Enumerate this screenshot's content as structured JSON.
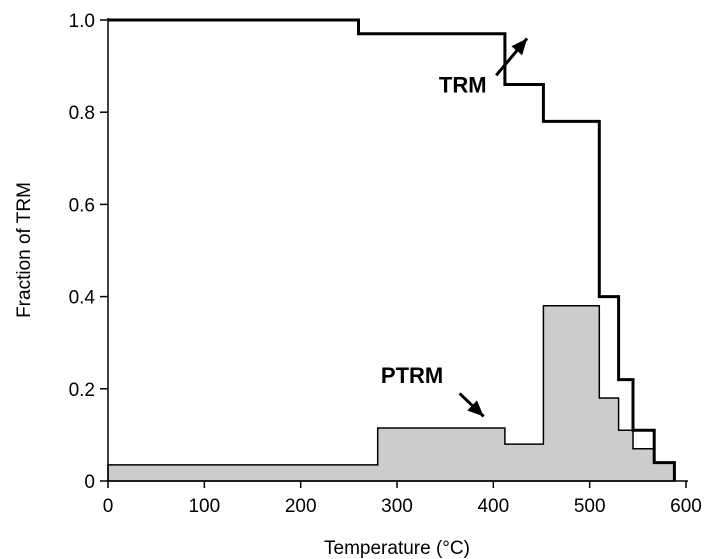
{
  "chart_data": {
    "type": "area",
    "title": "",
    "xlabel": "Temperature (°C)",
    "ylabel": "Fraction  of TRM",
    "xlim": [
      0,
      600
    ],
    "ylim": [
      0,
      1.0
    ],
    "xticks": [
      0,
      100,
      200,
      300,
      400,
      500,
      600
    ],
    "xtick_labels": [
      "0",
      "100",
      "200",
      "300",
      "400",
      "500",
      "600"
    ],
    "yticks": [
      0,
      0.2,
      0.4,
      0.6,
      0.8,
      1.0
    ],
    "ytick_labels": [
      "0",
      "0.2",
      "0.4",
      "0.6",
      "0.8",
      "1.0"
    ],
    "grid": false,
    "series": [
      {
        "name": "TRM",
        "style": "step-line",
        "color": "#000000",
        "points": [
          [
            0,
            1.0
          ],
          [
            260,
            1.0
          ],
          [
            260,
            0.97
          ],
          [
            412,
            0.97
          ],
          [
            412,
            0.86
          ],
          [
            452,
            0.86
          ],
          [
            452,
            0.78
          ],
          [
            510,
            0.78
          ],
          [
            510,
            0.4
          ],
          [
            530,
            0.4
          ],
          [
            530,
            0.22
          ],
          [
            545,
            0.22
          ],
          [
            545,
            0.11
          ],
          [
            567,
            0.11
          ],
          [
            567,
            0.04
          ],
          [
            588,
            0.04
          ],
          [
            588,
            0
          ]
        ]
      },
      {
        "name": "PTRM",
        "style": "step-area",
        "fill": "#cccccc",
        "color": "#000000",
        "points": [
          [
            0,
            0
          ],
          [
            0,
            0.035
          ],
          [
            280,
            0.035
          ],
          [
            280,
            0.115
          ],
          [
            412,
            0.115
          ],
          [
            412,
            0.08
          ],
          [
            452,
            0.08
          ],
          [
            452,
            0.38
          ],
          [
            510,
            0.38
          ],
          [
            510,
            0.18
          ],
          [
            530,
            0.18
          ],
          [
            530,
            0.11
          ],
          [
            545,
            0.11
          ],
          [
            545,
            0.07
          ],
          [
            567,
            0.07
          ],
          [
            567,
            0.04
          ],
          [
            588,
            0.04
          ],
          [
            588,
            0
          ]
        ]
      }
    ],
    "annotations": [
      {
        "text": "TRM",
        "text_at": [
          393,
          0.86
        ],
        "arrow_from": [
          403,
          0.88
        ],
        "arrow_to": [
          435,
          0.96
        ]
      },
      {
        "text": "PTRM",
        "text_at": [
          348,
          0.23
        ],
        "arrow_from": [
          365,
          0.19
        ],
        "arrow_to": [
          390,
          0.14
        ]
      }
    ]
  }
}
